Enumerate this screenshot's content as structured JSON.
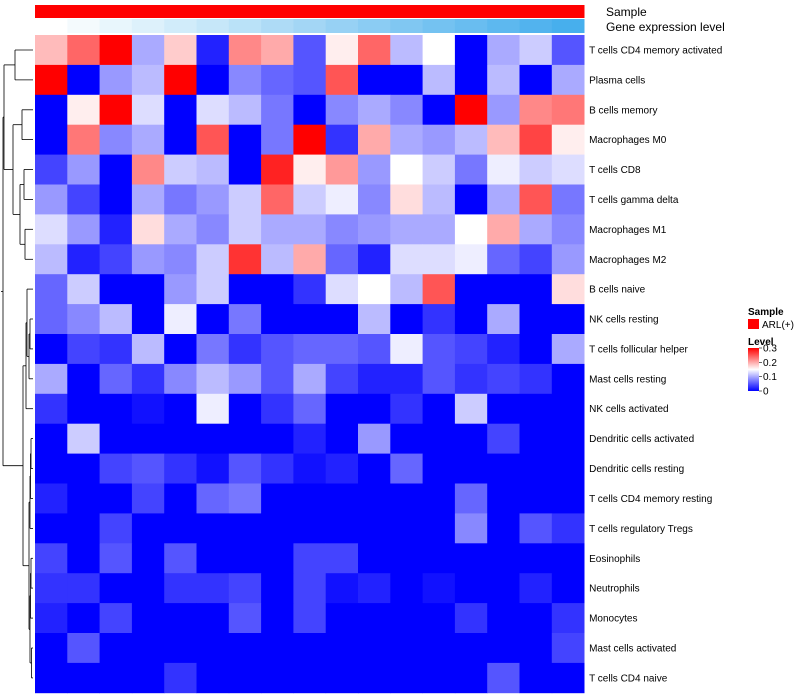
{
  "chart_data": {
    "type": "heatmap",
    "title": "",
    "rows": [
      "T cells CD4 memory activated",
      "Plasma cells",
      "B cells memory",
      "Macrophages M0",
      "T cells CD8",
      "T cells gamma delta",
      "Macrophages M1",
      "Macrophages M2",
      "B cells naive",
      "NK cells resting",
      "T cells follicular helper",
      "Mast cells resting",
      "NK cells activated",
      "Dendritic cells activated",
      "Dendritic cells resting",
      "T cells CD4 memory resting",
      "T cells regulatory  Tregs",
      "Eosinophils",
      "Neutrophils",
      "Monocytes",
      "Mast cells activated",
      "T cells CD4 naive"
    ],
    "n_columns": 17,
    "values": [
      [
        0.19,
        0.24,
        0.3,
        0.1,
        0.18,
        0.02,
        0.22,
        0.2,
        0.05,
        0.16,
        0.24,
        0.11,
        0.15,
        0.0,
        0.1,
        0.12,
        0.05
      ],
      [
        0.3,
        0.0,
        0.09,
        0.11,
        0.3,
        0.0,
        0.08,
        0.06,
        0.05,
        0.25,
        0.0,
        0.0,
        0.11,
        0.0,
        0.11,
        0.0,
        0.1
      ],
      [
        0.0,
        0.16,
        0.3,
        0.13,
        0.0,
        0.13,
        0.11,
        0.07,
        0.0,
        0.08,
        0.1,
        0.08,
        0.0,
        0.3,
        0.09,
        0.22,
        0.23
      ],
      [
        0.0,
        0.23,
        0.08,
        0.1,
        0.0,
        0.25,
        0.0,
        0.07,
        0.3,
        0.03,
        0.2,
        0.1,
        0.09,
        0.11,
        0.19,
        0.26,
        0.16
      ],
      [
        0.04,
        0.09,
        0.0,
        0.22,
        0.12,
        0.11,
        0.0,
        0.28,
        0.16,
        0.21,
        0.09,
        0.15,
        0.12,
        0.07,
        0.14,
        0.12,
        0.13
      ],
      [
        0.09,
        0.04,
        0.0,
        0.1,
        0.07,
        0.09,
        0.12,
        0.24,
        0.12,
        0.14,
        0.08,
        0.17,
        0.11,
        0.0,
        0.1,
        0.25,
        0.07
      ],
      [
        0.13,
        0.09,
        0.02,
        0.17,
        0.1,
        0.08,
        0.12,
        0.1,
        0.1,
        0.08,
        0.09,
        0.1,
        0.1,
        0.15,
        0.2,
        0.1,
        0.08
      ],
      [
        0.11,
        0.02,
        0.04,
        0.09,
        0.08,
        0.12,
        0.27,
        0.11,
        0.2,
        0.06,
        0.02,
        0.13,
        0.13,
        0.14,
        0.06,
        0.04,
        0.09
      ],
      [
        0.06,
        0.12,
        0.0,
        0.0,
        0.09,
        0.12,
        0.0,
        0.0,
        0.03,
        0.13,
        0.15,
        0.11,
        0.25,
        0.0,
        0.0,
        0.0,
        0.17
      ],
      [
        0.06,
        0.08,
        0.11,
        0.0,
        0.14,
        0.0,
        0.07,
        0.0,
        0.0,
        0.0,
        0.11,
        0.0,
        0.03,
        0.0,
        0.1,
        0.0,
        0.0
      ],
      [
        0.0,
        0.04,
        0.03,
        0.11,
        0.0,
        0.07,
        0.03,
        0.05,
        0.06,
        0.06,
        0.05,
        0.14,
        0.05,
        0.04,
        0.02,
        0.0,
        0.1
      ],
      [
        0.1,
        0.0,
        0.06,
        0.03,
        0.08,
        0.11,
        0.09,
        0.05,
        0.1,
        0.04,
        0.02,
        0.02,
        0.05,
        0.03,
        0.04,
        0.03,
        0.0
      ],
      [
        0.03,
        0.0,
        0.0,
        0.01,
        0.0,
        0.14,
        0.0,
        0.03,
        0.06,
        0.0,
        0.0,
        0.03,
        0.0,
        0.12,
        0.0,
        0.0,
        0.0
      ],
      [
        0.0,
        0.12,
        0.0,
        0.0,
        0.0,
        0.0,
        0.0,
        0.0,
        0.02,
        0.0,
        0.09,
        0.0,
        0.0,
        0.0,
        0.04,
        0.0,
        0.0
      ],
      [
        0.0,
        0.0,
        0.04,
        0.05,
        0.03,
        0.01,
        0.05,
        0.03,
        0.01,
        0.02,
        0.0,
        0.06,
        0.0,
        0.0,
        0.0,
        0.0,
        0.0
      ],
      [
        0.02,
        0.0,
        0.0,
        0.04,
        0.0,
        0.06,
        0.07,
        0.0,
        0.0,
        0.0,
        0.0,
        0.0,
        0.0,
        0.06,
        0.0,
        0.0,
        0.0
      ],
      [
        0.0,
        0.0,
        0.04,
        0.0,
        0.0,
        0.0,
        0.0,
        0.0,
        0.0,
        0.0,
        0.0,
        0.0,
        0.0,
        0.08,
        0.0,
        0.05,
        0.03
      ],
      [
        0.04,
        0.0,
        0.05,
        0.0,
        0.05,
        0.0,
        0.0,
        0.0,
        0.04,
        0.04,
        0.0,
        0.0,
        0.0,
        0.0,
        0.0,
        0.0,
        0.0
      ],
      [
        0.03,
        0.03,
        0.0,
        0.0,
        0.03,
        0.03,
        0.04,
        0.0,
        0.04,
        0.01,
        0.02,
        0.0,
        0.01,
        0.0,
        0.0,
        0.02,
        0.0
      ],
      [
        0.02,
        0.0,
        0.04,
        0.0,
        0.0,
        0.0,
        0.05,
        0.0,
        0.04,
        0.0,
        0.0,
        0.0,
        0.0,
        0.03,
        0.0,
        0.0,
        0.03
      ],
      [
        0.0,
        0.05,
        0.0,
        0.0,
        0.0,
        0.0,
        0.0,
        0.0,
        0.0,
        0.0,
        0.0,
        0.0,
        0.0,
        0.0,
        0.0,
        0.0,
        0.04
      ],
      [
        0.0,
        0.0,
        0.0,
        0.0,
        0.03,
        0.0,
        0.0,
        0.0,
        0.0,
        0.0,
        0.0,
        0.0,
        0.0,
        0.0,
        0.05,
        0.0,
        0.0
      ]
    ],
    "color_scale": {
      "min": 0,
      "mid": 0.15,
      "max": 0.3,
      "low_color": "#0000ff",
      "mid_color": "#ffffff",
      "high_color": "#ff0000"
    },
    "annotations": [
      {
        "name": "Sample",
        "color": "#ff0000"
      },
      {
        "name": "Gene expression level",
        "colors": [
          "#ffffff",
          "#f4fafd",
          "#e8f6fc",
          "#ddf1fb",
          "#d1ecfa",
          "#c6e7f9",
          "#bae2f8",
          "#aedbf6",
          "#a3d6f5",
          "#97d1f4",
          "#8bccf3",
          "#80c7f2",
          "#74c2f1",
          "#69bdf0",
          "#5db8ef",
          "#52b3ee",
          "#47afed"
        ]
      }
    ],
    "legend": {
      "position": "right",
      "sample_title": "Sample",
      "sample_entry": "ARL(+)",
      "level_title": "Level",
      "level_ticks": [
        "0.3",
        "0.2",
        "0.1",
        "0"
      ]
    },
    "dendrogram_side": "left"
  }
}
